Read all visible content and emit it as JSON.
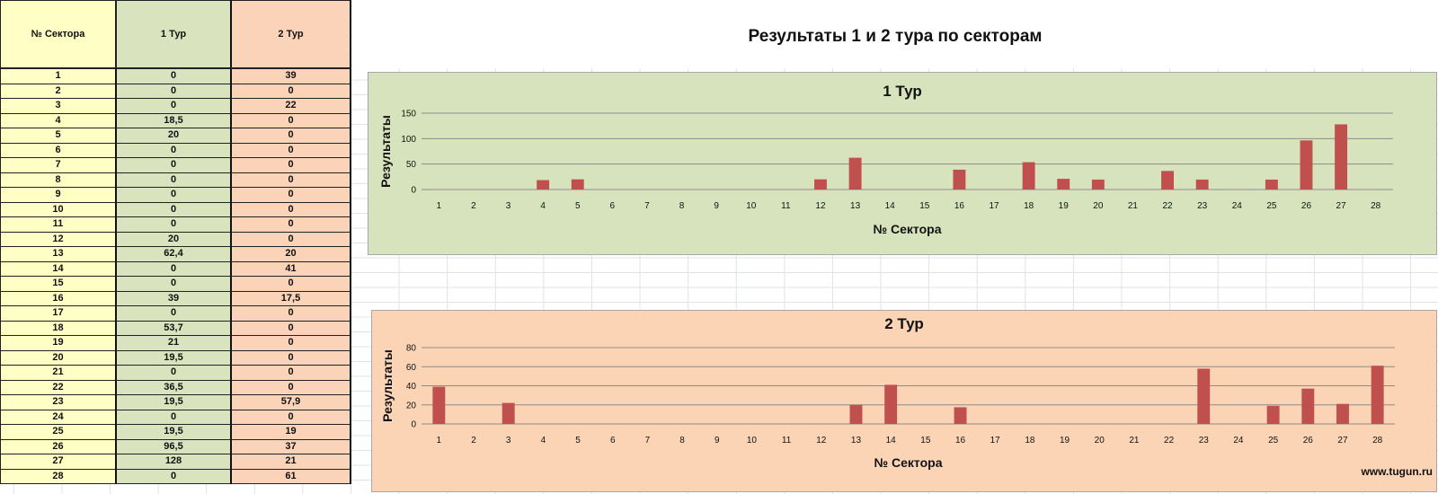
{
  "table": {
    "headers": [
      "№ Сектора",
      "1 Тур",
      "2 Тур"
    ],
    "rows": [
      [
        "1",
        "0",
        "39"
      ],
      [
        "2",
        "0",
        "0"
      ],
      [
        "3",
        "0",
        "22"
      ],
      [
        "4",
        "18,5",
        "0"
      ],
      [
        "5",
        "20",
        "0"
      ],
      [
        "6",
        "0",
        "0"
      ],
      [
        "7",
        "0",
        "0"
      ],
      [
        "8",
        "0",
        "0"
      ],
      [
        "9",
        "0",
        "0"
      ],
      [
        "10",
        "0",
        "0"
      ],
      [
        "11",
        "0",
        "0"
      ],
      [
        "12",
        "20",
        "0"
      ],
      [
        "13",
        "62,4",
        "20"
      ],
      [
        "14",
        "0",
        "41"
      ],
      [
        "15",
        "0",
        "0"
      ],
      [
        "16",
        "39",
        "17,5"
      ],
      [
        "17",
        "0",
        "0"
      ],
      [
        "18",
        "53,7",
        "0"
      ],
      [
        "19",
        "21",
        "0"
      ],
      [
        "20",
        "19,5",
        "0"
      ],
      [
        "21",
        "0",
        "0"
      ],
      [
        "22",
        "36,5",
        "0"
      ],
      [
        "23",
        "19,5",
        "57,9"
      ],
      [
        "24",
        "0",
        "0"
      ],
      [
        "25",
        "19,5",
        "19"
      ],
      [
        "26",
        "96,5",
        "37"
      ],
      [
        "27",
        "128",
        "21"
      ],
      [
        "28",
        "0",
        "61"
      ]
    ]
  },
  "main_title": "Результаты 1 и 2 тура по секторам",
  "watermark": "www.tugun.ru",
  "colors": {
    "bar": "#c0504d",
    "chart1_bg": "#d7e3bd",
    "chart2_bg": "#fbd4b6"
  },
  "chart_data": [
    {
      "type": "bar",
      "title": "1 Тур",
      "xlabel": "№ Сектора",
      "ylabel": "Результаты",
      "ylim": [
        0,
        150
      ],
      "yticks": [
        0,
        50,
        100,
        150
      ],
      "grid": true,
      "categories": [
        "1",
        "2",
        "3",
        "4",
        "5",
        "6",
        "7",
        "8",
        "9",
        "10",
        "11",
        "12",
        "13",
        "14",
        "15",
        "16",
        "17",
        "18",
        "19",
        "20",
        "21",
        "22",
        "23",
        "24",
        "25",
        "26",
        "27",
        "28"
      ],
      "values": [
        0,
        0,
        0,
        18.5,
        20,
        0,
        0,
        0,
        0,
        0,
        0,
        20,
        62.4,
        0,
        0,
        39,
        0,
        53.7,
        21,
        19.5,
        0,
        36.5,
        19.5,
        0,
        19.5,
        96.5,
        128,
        0
      ]
    },
    {
      "type": "bar",
      "title": "2 Тур",
      "xlabel": "№ Сектора",
      "ylabel": "Результаты",
      "ylim": [
        0,
        80
      ],
      "yticks": [
        0,
        20,
        40,
        60,
        80
      ],
      "grid": true,
      "categories": [
        "1",
        "2",
        "3",
        "4",
        "5",
        "6",
        "7",
        "8",
        "9",
        "10",
        "11",
        "12",
        "13",
        "14",
        "15",
        "16",
        "17",
        "18",
        "19",
        "20",
        "21",
        "22",
        "23",
        "24",
        "25",
        "26",
        "27",
        "28"
      ],
      "values": [
        39,
        0,
        22,
        0,
        0,
        0,
        0,
        0,
        0,
        0,
        0,
        0,
        20,
        41,
        0,
        17.5,
        0,
        0,
        0,
        0,
        0,
        0,
        57.9,
        0,
        19,
        37,
        21,
        61
      ]
    }
  ]
}
